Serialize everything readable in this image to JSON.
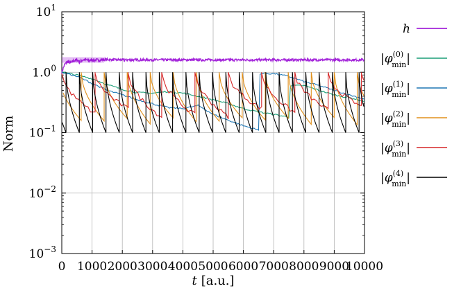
{
  "chart_data": {
    "type": "line",
    "title": "",
    "xlabel": {
      "symbol": "t",
      "unit": "[a.u.]"
    },
    "ylabel": "Norm",
    "xlim": [
      0,
      10000
    ],
    "ylim": [
      0.001,
      10
    ],
    "yscale": "log",
    "grid": true,
    "legend_position": "right",
    "x_ticks": [
      "0",
      "1000",
      "2000",
      "3000",
      "4000",
      "5000",
      "6000",
      "7000",
      "8000",
      "9000",
      "10000"
    ],
    "y_ticks": [
      {
        "base": "10",
        "exp": "1"
      },
      {
        "base": "1.0",
        "exp": "0"
      },
      {
        "base": "10",
        "exp": "−1"
      },
      {
        "base": "10",
        "exp": "−2"
      },
      {
        "base": "10",
        "exp": "−3"
      }
    ],
    "series": [
      {
        "name": "h",
        "color": "#9400d3",
        "approx": "fluctuates around 1.6 across the whole range (1.35–1.75)",
        "x": [
          0,
          100,
          200,
          300,
          400,
          500,
          600,
          700,
          800,
          900,
          1000,
          1200,
          1400,
          2000,
          3000,
          4000,
          5000,
          6000,
          7000,
          8000,
          9000,
          10000
        ],
        "y": [
          1.0,
          1.35,
          1.5,
          1.42,
          1.55,
          1.6,
          1.48,
          1.62,
          1.6,
          1.55,
          1.6,
          1.58,
          1.62,
          1.6,
          1.6,
          1.6,
          1.6,
          1.6,
          1.6,
          1.6,
          1.6,
          1.6
        ]
      },
      {
        "name_base": "φ",
        "name_sub": "min",
        "name_sup": "(0)",
        "color": "#1a9e77",
        "x": [
          0,
          500,
          1000,
          1500,
          2000,
          2500,
          3000,
          3500,
          4000,
          4500,
          5000,
          5500,
          6000,
          6500,
          7000,
          7500,
          8000,
          8500,
          9000,
          9500,
          10000
        ],
        "y": [
          1.0,
          0.9,
          0.78,
          0.62,
          0.52,
          0.46,
          0.45,
          0.48,
          0.45,
          0.4,
          0.35,
          0.3,
          0.25,
          0.22,
          0.2,
          0.18,
          0.6,
          0.5,
          0.42,
          0.38,
          0.33
        ]
      },
      {
        "name_base": "φ",
        "name_sub": "min",
        "name_sup": "(1)",
        "color": "#1f77b4",
        "x": [
          0,
          500,
          1000,
          1500,
          2000,
          2500,
          3000,
          3500,
          4000,
          4500,
          5000,
          5500,
          6000,
          6500,
          7000,
          7500,
          8000,
          8500,
          9000,
          9500,
          10000
        ],
        "y": [
          1.0,
          0.85,
          0.65,
          0.5,
          0.42,
          0.35,
          0.3,
          0.26,
          0.25,
          0.28,
          0.2,
          0.16,
          0.13,
          0.11,
          0.95,
          0.85,
          0.7,
          0.6,
          0.5,
          0.42,
          0.36
        ]
      },
      {
        "name_base": "φ",
        "name_sub": "min",
        "name_sup": "(2)",
        "color": "#e0901c",
        "sawtooth_period": 760,
        "approx": "repeated decays from 1.0 to about 0.12–0.2, period ≈ 760"
      },
      {
        "name_base": "φ",
        "name_sub": "min",
        "name_sup": "(3)",
        "color": "#d62728",
        "sawtooth_period": 1100,
        "approx": "noisy repeated decays from 1.0 to about 0.15–0.3, period ≈ 1100"
      },
      {
        "name_base": "φ",
        "name_sub": "min",
        "name_sup": "(4)",
        "color": "#000000",
        "sawtooth_period": 440,
        "approx": "fast repeated decays from 1.0 to 0.1, period ≈ 440"
      }
    ]
  }
}
